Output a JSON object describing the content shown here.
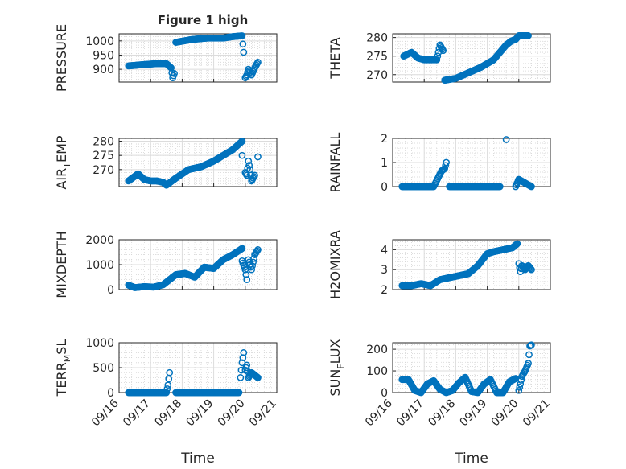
{
  "figure": {
    "title": "Figure 1 high",
    "marker_color": "#0072BD"
  },
  "chart_data": [
    {
      "type": "scatter",
      "ylabel": "PRESSURE",
      "ylim": [
        855,
        1025
      ],
      "yticks": [
        900,
        950,
        1000
      ],
      "xlim": [
        0,
        5
      ],
      "xticks": [
        "09/16",
        "09/17",
        "09/18",
        "09/19",
        "09/20",
        "09/21"
      ],
      "show_xticklabels": false,
      "xlabel": "",
      "grid": "major+minor",
      "series": [
        {
          "x": [
            0.3,
            0.8,
            1.2,
            1.5,
            1.65,
            1.7,
            1.75
          ],
          "y": [
            912,
            917,
            920,
            920,
            905,
            870,
            885
          ]
        },
        {
          "x": [
            1.8,
            2.3,
            2.8,
            3.3,
            3.6,
            3.9,
            3.95,
            4.0,
            4.05,
            4.1,
            4.2,
            4.3,
            4.4
          ],
          "y": [
            995,
            1005,
            1010,
            1010,
            1015,
            1018,
            960,
            870,
            880,
            900,
            880,
            905,
            925
          ]
        }
      ]
    },
    {
      "type": "scatter",
      "ylabel": "THETA",
      "ylim": [
        268,
        281
      ],
      "yticks": [
        270,
        275,
        280
      ],
      "xlim": [
        0,
        5
      ],
      "xticks": [
        "09/16",
        "09/17",
        "09/18",
        "09/19",
        "09/20",
        "09/21"
      ],
      "show_xticklabels": false,
      "xlabel": "",
      "grid": "major+minor",
      "series": [
        {
          "x": [
            0.35,
            0.6,
            0.8,
            1.0,
            1.2,
            1.4,
            1.5,
            1.6
          ],
          "y": [
            275,
            276,
            274.5,
            274,
            274,
            274,
            278,
            276.5
          ]
        },
        {
          "x": [
            1.65,
            2.0,
            2.4,
            2.8,
            3.2,
            3.6,
            3.75,
            3.9,
            4.0,
            4.3
          ],
          "y": [
            268.5,
            269,
            270.5,
            272,
            274,
            278,
            279,
            279.5,
            280.5,
            280.5
          ]
        }
      ]
    },
    {
      "type": "scatter",
      "ylabel": "AIR_TEMP",
      "ylim": [
        264,
        281
      ],
      "yticks": [
        270,
        275,
        280
      ],
      "xlim": [
        0,
        5
      ],
      "xticks": [
        "09/16",
        "09/17",
        "09/18",
        "09/19",
        "09/20",
        "09/21"
      ],
      "show_xticklabels": false,
      "xlabel": "",
      "grid": "major+minor",
      "series": [
        {
          "x": [
            0.3,
            0.6,
            0.8,
            1.0,
            1.2,
            1.4,
            1.5,
            1.8,
            2.2,
            2.6,
            3.0,
            3.3,
            3.6,
            3.9
          ],
          "y": [
            266,
            268.5,
            266.5,
            266,
            266,
            265.5,
            264.5,
            267,
            270,
            271,
            273,
            275,
            277,
            280
          ]
        },
        {
          "x": [
            3.9,
            4.0,
            4.05,
            4.1,
            4.15,
            4.2,
            4.3,
            4.4
          ],
          "y": [
            275,
            269,
            268,
            273,
            270,
            266,
            268,
            274.5
          ]
        }
      ]
    },
    {
      "type": "scatter",
      "ylabel": "RAINFALL",
      "ylim": [
        0,
        2
      ],
      "yticks": [
        0,
        1,
        2
      ],
      "xlim": [
        0,
        5
      ],
      "xticks": [
        "09/16",
        "09/17",
        "09/18",
        "09/19",
        "09/20",
        "09/21"
      ],
      "show_xticklabels": false,
      "xlabel": "",
      "grid": "major+minor",
      "series": [
        {
          "x": [
            0.3,
            0.8,
            1.3,
            1.55,
            1.65,
            1.7,
            1.8,
            2.2,
            2.8,
            3.4,
            3.6,
            3.9,
            4.0,
            4.4
          ],
          "y": [
            0,
            0,
            0,
            0.65,
            0.75,
            1.0,
            0,
            0,
            0,
            0,
            1.95,
            0,
            0.3,
            0
          ]
        }
      ]
    },
    {
      "type": "scatter",
      "ylabel": "MIXDEPTH",
      "ylim": [
        0,
        2000
      ],
      "yticks": [
        0,
        1000,
        2000
      ],
      "xlim": [
        0,
        5
      ],
      "xticks": [
        "09/16",
        "09/17",
        "09/18",
        "09/19",
        "09/20",
        "09/21"
      ],
      "show_xticklabels": false,
      "xlabel": "",
      "grid": "major+minor",
      "series": [
        {
          "x": [
            0.3,
            0.5,
            0.8,
            1.1,
            1.4,
            1.6,
            1.8,
            2.1,
            2.4,
            2.7,
            3.0,
            3.3,
            3.6,
            3.9
          ],
          "y": [
            180,
            80,
            120,
            100,
            200,
            400,
            600,
            650,
            500,
            900,
            850,
            1200,
            1400,
            1650
          ]
        },
        {
          "x": [
            3.9,
            4.0,
            4.05,
            4.1,
            4.2,
            4.3,
            4.4
          ],
          "y": [
            1150,
            800,
            400,
            1200,
            800,
            1400,
            1600
          ]
        }
      ]
    },
    {
      "type": "scatter",
      "ylabel": "H2OMIXRA",
      "ylim": [
        2,
        4.5
      ],
      "yticks": [
        2,
        3,
        4
      ],
      "xlim": [
        0,
        5
      ],
      "xticks": [
        "09/16",
        "09/17",
        "09/18",
        "09/19",
        "09/20",
        "09/21"
      ],
      "show_xticklabels": false,
      "xlabel": "",
      "grid": "major+minor",
      "series": [
        {
          "x": [
            0.3,
            0.6,
            0.9,
            1.2,
            1.4,
            1.5,
            1.8,
            2.1,
            2.4,
            2.7,
            3.0,
            3.2,
            3.5,
            3.8,
            3.95
          ],
          "y": [
            2.2,
            2.2,
            2.3,
            2.2,
            2.4,
            2.5,
            2.6,
            2.7,
            2.8,
            3.2,
            3.8,
            3.9,
            4.0,
            4.1,
            4.3
          ]
        },
        {
          "x": [
            4.0,
            4.05,
            4.1,
            4.2,
            4.3,
            4.4
          ],
          "y": [
            3.3,
            2.9,
            3.2,
            3.0,
            3.2,
            3.0
          ]
        }
      ]
    },
    {
      "type": "scatter",
      "ylabel": "TERR_MSL",
      "ylim": [
        0,
        1000
      ],
      "yticks": [
        0,
        500,
        1000
      ],
      "xlim": [
        0,
        5
      ],
      "xticks": [
        "09/16",
        "09/17",
        "09/18",
        "09/19",
        "09/20",
        "09/21"
      ],
      "show_xticklabels": true,
      "xlabel": "Time",
      "grid": "major+minor",
      "series": [
        {
          "x": [
            0.3,
            0.8,
            1.2,
            1.5,
            1.55,
            1.6,
            1.8,
            2.3,
            2.8,
            3.3,
            3.8
          ],
          "y": [
            0,
            0,
            0,
            0,
            150,
            400,
            0,
            0,
            0,
            0,
            0
          ]
        },
        {
          "x": [
            3.85,
            3.9,
            3.95,
            4.0,
            4.05,
            4.1,
            4.2,
            4.3,
            4.4
          ],
          "y": [
            300,
            600,
            800,
            450,
            550,
            300,
            400,
            350,
            300
          ]
        }
      ]
    },
    {
      "type": "scatter",
      "ylabel": "SUN_FLUX",
      "ylim": [
        0,
        230
      ],
      "yticks": [
        0,
        100,
        200
      ],
      "xlim": [
        0,
        5
      ],
      "xticks": [
        "09/16",
        "09/17",
        "09/18",
        "09/19",
        "09/20",
        "09/21"
      ],
      "show_xticklabels": true,
      "xlabel": "Time",
      "grid": "major+minor",
      "series": [
        {
          "x": [
            0.3,
            0.5,
            0.7,
            0.9,
            1.1,
            1.3,
            1.5,
            1.7,
            1.9,
            2.1,
            2.3,
            2.5,
            2.7,
            2.9,
            3.1,
            3.3,
            3.5,
            3.7,
            3.9
          ],
          "y": [
            60,
            60,
            10,
            0,
            40,
            55,
            15,
            0,
            10,
            45,
            70,
            5,
            0,
            40,
            60,
            0,
            0,
            50,
            65
          ]
        },
        {
          "x": [
            4.0,
            4.05,
            4.1,
            4.2,
            4.3,
            4.35,
            4.4
          ],
          "y": [
            10,
            40,
            75,
            100,
            135,
            215,
            220
          ]
        }
      ]
    }
  ]
}
